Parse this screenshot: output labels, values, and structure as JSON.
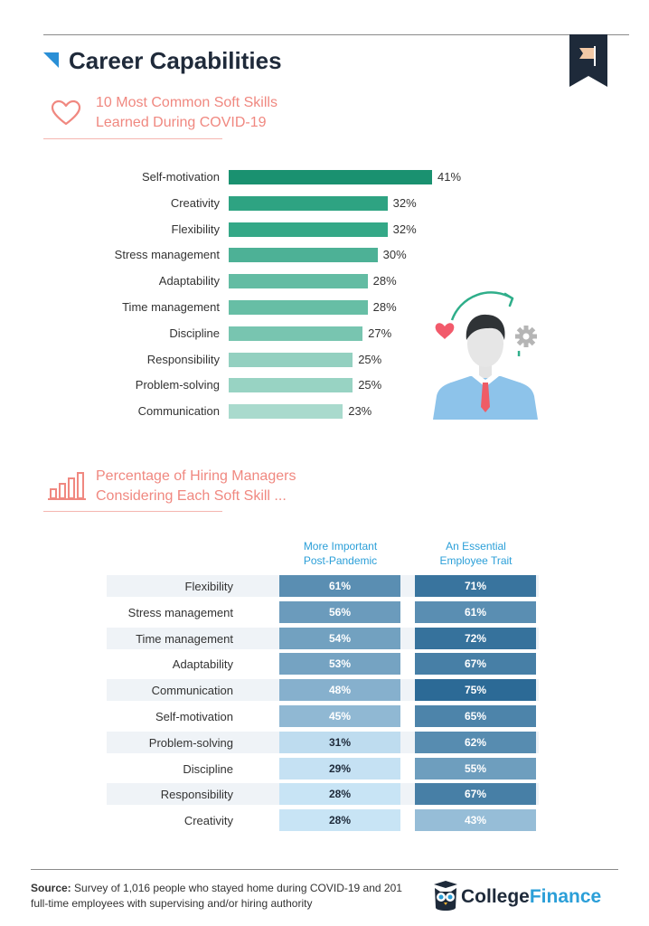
{
  "header": {
    "title": "Career Capabilities"
  },
  "section1": {
    "title_line1": "10 Most Common Soft Skills",
    "title_line2": "Learned During COVID-19"
  },
  "section2": {
    "title_line1": "Percentage of Hiring Managers",
    "title_line2": "Considering Each Soft Skill ..."
  },
  "colors": {
    "accent_blue": "#2a8fd6",
    "section_title": "#f08880",
    "navy": "#1e2a3a",
    "bar_gradient": [
      "#1a9170",
      "#2ea382",
      "#34a887",
      "#4db196",
      "#63bca3",
      "#67bea5",
      "#78c5b0",
      "#93d0c0",
      "#98d3c3",
      "#a9dacd"
    ]
  },
  "chart_data": [
    {
      "type": "bar",
      "orientation": "horizontal",
      "title": "10 Most Common Soft Skills Learned During COVID-19",
      "categories": [
        "Self-motivation",
        "Creativity",
        "Flexibility",
        "Stress management",
        "Adaptability",
        "Time management",
        "Discipline",
        "Responsibility",
        "Problem-solving",
        "Communication"
      ],
      "values": [
        41,
        32,
        32,
        30,
        28,
        28,
        27,
        25,
        25,
        23
      ],
      "value_labels": [
        "41%",
        "32%",
        "32%",
        "30%",
        "28%",
        "28%",
        "27%",
        "25%",
        "25%",
        "23%"
      ],
      "unit": "%",
      "xlim": [
        0,
        41
      ],
      "grid": false
    },
    {
      "type": "table",
      "title": "Percentage of Hiring Managers Considering Each Soft Skill ...",
      "columns": [
        "More Important Post-Pandemic",
        "An Essential Employee Trait"
      ],
      "column_lines": [
        [
          "More Important",
          "Post-Pandemic"
        ],
        [
          "An Essential",
          "Employee Trait"
        ]
      ],
      "rows": [
        "Flexibility",
        "Stress management",
        "Time management",
        "Adaptability",
        "Communication",
        "Self-motivation",
        "Problem-solving",
        "Discipline",
        "Responsibility",
        "Creativity"
      ],
      "series": [
        {
          "values": [
            61,
            56,
            54,
            53,
            48,
            45,
            31,
            29,
            28,
            28
          ],
          "value_labels": [
            "61%",
            "56%",
            "54%",
            "53%",
            "48%",
            "45%",
            "31%",
            "29%",
            "28%",
            "28%"
          ]
        },
        {
          "values": [
            71,
            61,
            72,
            67,
            75,
            65,
            62,
            55,
            67,
            43
          ],
          "value_labels": [
            "71%",
            "61%",
            "72%",
            "67%",
            "75%",
            "65%",
            "62%",
            "55%",
            "67%",
            "43%"
          ]
        }
      ],
      "unit": "%"
    }
  ],
  "footer": {
    "source_label": "Source:",
    "source_text": " Survey of 1,016 people who stayed home during COVID-19 and 201 full-time employees with supervising and/or hiring authority",
    "brand_part1": "College",
    "brand_part2": "Finance",
    "brand_color1": "#1e2a3a",
    "brand_color2": "#2b9fd8"
  }
}
